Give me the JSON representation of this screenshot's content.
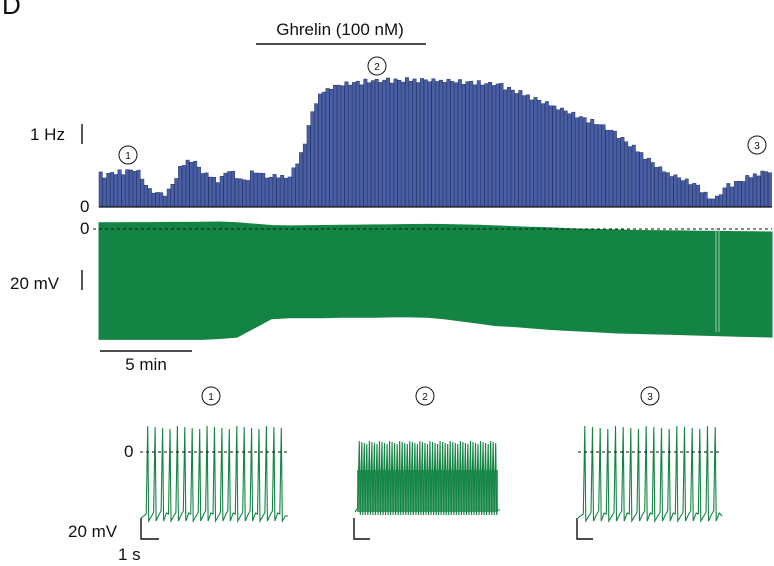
{
  "panel_label": "D",
  "colors": {
    "histogram": "#4a5fa3",
    "histogram_edge": "#1f2f6b",
    "trace": "#138443",
    "scale": "#111111"
  },
  "chart_data": [
    {
      "type": "bar",
      "description_label": "firing-rate histogram",
      "title": "",
      "treatment_label": "Ghrelin (100 nM)",
      "scale_bar_label": "1 Hz",
      "zero_label": "0",
      "epoch_markers": [
        "1",
        "2",
        "3"
      ],
      "ylim": [
        0,
        1.7
      ],
      "values": [
        0.45,
        0.4,
        0.42,
        0.45,
        0.44,
        0.46,
        0.45,
        0.48,
        0.47,
        0.5,
        0.45,
        0.38,
        0.28,
        0.22,
        0.2,
        0.18,
        0.16,
        0.18,
        0.22,
        0.3,
        0.4,
        0.5,
        0.56,
        0.6,
        0.62,
        0.58,
        0.52,
        0.46,
        0.42,
        0.4,
        0.38,
        0.34,
        0.38,
        0.44,
        0.48,
        0.44,
        0.4,
        0.36,
        0.34,
        0.38,
        0.44,
        0.46,
        0.44,
        0.42,
        0.4,
        0.38,
        0.4,
        0.42,
        0.4,
        0.38,
        0.42,
        0.48,
        0.58,
        0.7,
        0.86,
        1.05,
        1.25,
        1.38,
        1.46,
        1.52,
        1.55,
        1.57,
        1.58,
        1.6,
        1.61,
        1.62,
        1.63,
        1.63,
        1.64,
        1.64,
        1.65,
        1.65,
        1.66,
        1.66,
        1.66,
        1.66,
        1.67,
        1.67,
        1.67,
        1.67,
        1.67,
        1.67,
        1.67,
        1.67,
        1.67,
        1.67,
        1.67,
        1.67,
        1.66,
        1.66,
        1.66,
        1.66,
        1.66,
        1.65,
        1.65,
        1.65,
        1.64,
        1.64,
        1.64,
        1.64,
        1.63,
        1.62,
        1.62,
        1.62,
        1.62,
        1.61,
        1.6,
        1.58,
        1.56,
        1.54,
        1.52,
        1.5,
        1.48,
        1.46,
        1.44,
        1.42,
        1.4,
        1.38,
        1.36,
        1.34,
        1.32,
        1.3,
        1.28,
        1.26,
        1.24,
        1.22,
        1.2,
        1.18,
        1.16,
        1.14,
        1.12,
        1.1,
        1.08,
        1.06,
        1.03,
        1.0,
        0.97,
        0.94,
        0.9,
        0.86,
        0.82,
        0.78,
        0.74,
        0.7,
        0.66,
        0.62,
        0.58,
        0.54,
        0.5,
        0.47,
        0.44,
        0.42,
        0.4,
        0.38,
        0.36,
        0.34,
        0.32,
        0.3,
        0.27,
        0.22,
        0.16,
        0.12,
        0.1,
        0.12,
        0.18,
        0.24,
        0.28,
        0.3,
        0.32,
        0.34,
        0.36,
        0.38,
        0.4,
        0.42,
        0.44,
        0.45,
        0.46,
        0.47
      ],
      "jitter": [
        0.02,
        -0.03,
        0.04,
        0.01,
        -0.02,
        0.05,
        -0.04,
        0.02,
        0.03,
        -0.05,
        0.06,
        -0.02,
        0.01,
        0.04,
        -0.03,
        0.02,
        0.05,
        -0.06,
        0.03,
        0.0,
        -0.04,
        0.06,
        -0.02,
        0.03,
        -0.05,
        0.04,
        0.01,
        -0.03,
        0.05,
        -0.01
      ]
    },
    {
      "type": "line",
      "description_label": "membrane potential trace",
      "title": "",
      "zero_label": "0",
      "scale_bar_label": "20 mV",
      "time_scale_label": "5 min",
      "upper_envelope": [
        1.0,
        1.0,
        1.05,
        1.05,
        1.1,
        1.1,
        1.15,
        1.2,
        1.0,
        0.7,
        0.35,
        0.25,
        0.3,
        0.35,
        0.4,
        0.45,
        0.5,
        0.55,
        0.6,
        0.62,
        0.6,
        0.5,
        0.4,
        0.25,
        0.1,
        -0.05,
        -0.2,
        -0.35,
        -0.5,
        -0.6,
        -0.7,
        -0.8,
        -0.85,
        -0.9,
        -0.95,
        -1.0,
        -1.05,
        -1.1,
        -1.15,
        -1.2
      ],
      "lower_envelope": [
        -24.0,
        -24.0,
        -24.0,
        -24.0,
        -24.0,
        -24.0,
        -24.0,
        -23.8,
        -23.5,
        -21.5,
        -19.5,
        -19.3,
        -19.3,
        -19.3,
        -19.2,
        -19.2,
        -19.2,
        -19.1,
        -19.1,
        -19.2,
        -19.5,
        -20.0,
        -20.5,
        -21.0,
        -21.2,
        -21.5,
        -21.8,
        -22.0,
        -22.2,
        -22.4,
        -22.6,
        -22.7,
        -22.8,
        -22.9,
        -23.0,
        -23.1,
        -23.2,
        -23.3,
        -23.4,
        -23.5
      ],
      "vlim": [
        -26,
        2
      ]
    },
    {
      "type": "line",
      "description_label": "expanded spike traces",
      "title": "",
      "zero_label": "0",
      "scale_bar_v_label": "20 mV",
      "scale_bar_t_label": "1 s",
      "insets": [
        {
          "marker": "1",
          "spikes": 19,
          "peak": 3.0,
          "baseline": -22.0
        },
        {
          "marker": "2",
          "spikes": 55,
          "peak": 0.5,
          "baseline": -21.0
        },
        {
          "marker": "3",
          "spikes": 18,
          "peak": 2.5,
          "baseline": -22.0
        }
      ]
    }
  ]
}
